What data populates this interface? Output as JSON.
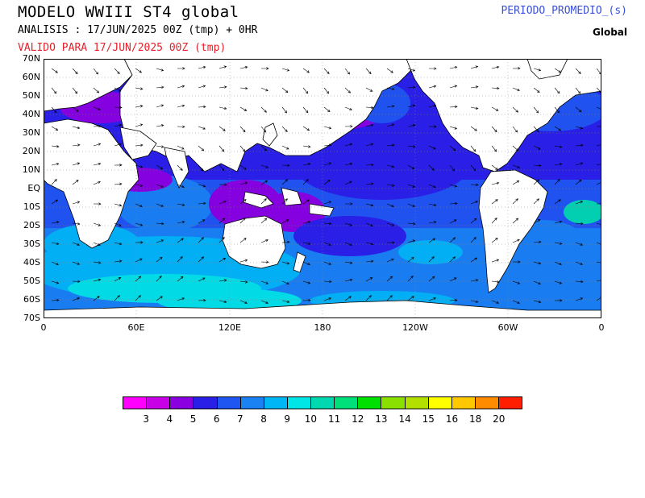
{
  "header": {
    "title": "MODELO WWIII ST4 global",
    "analysis": "ANALISIS : 17/JUN/2025 00Z  (tmp) + 0HR",
    "valid": "VALIDO PARA  17/JUN/2025 00Z  (tmp)",
    "variable": "PERIODO_PROMEDIO_(s)",
    "region": "Global"
  },
  "map": {
    "lat_labels": [
      "70N",
      "60N",
      "50N",
      "40N",
      "30N",
      "20N",
      "10N",
      "EQ",
      "10S",
      "20S",
      "30S",
      "40S",
      "50S",
      "60S",
      "70S"
    ],
    "lon_labels": [
      "0",
      "60E",
      "120E",
      "180",
      "120W",
      "60W",
      "0"
    ],
    "field": "mean wave period (s)",
    "land_color": "#ffffff",
    "coastline_color": "#000000"
  },
  "colorbar": {
    "colors": [
      "#ff00ff",
      "#c800e6",
      "#8a00e0",
      "#2a1fe6",
      "#1f55f0",
      "#1a82f2",
      "#00b6f5",
      "#00e6e6",
      "#00d8b0",
      "#00e07a",
      "#00e000",
      "#8ae000",
      "#b4e000",
      "#ffff00",
      "#ffc800",
      "#ff8c00",
      "#ff1e00"
    ],
    "labels": [
      "3",
      "4",
      "5",
      "6",
      "7",
      "8",
      "9",
      "10",
      "11",
      "12",
      "13",
      "14",
      "15",
      "16",
      "18",
      "20"
    ]
  }
}
